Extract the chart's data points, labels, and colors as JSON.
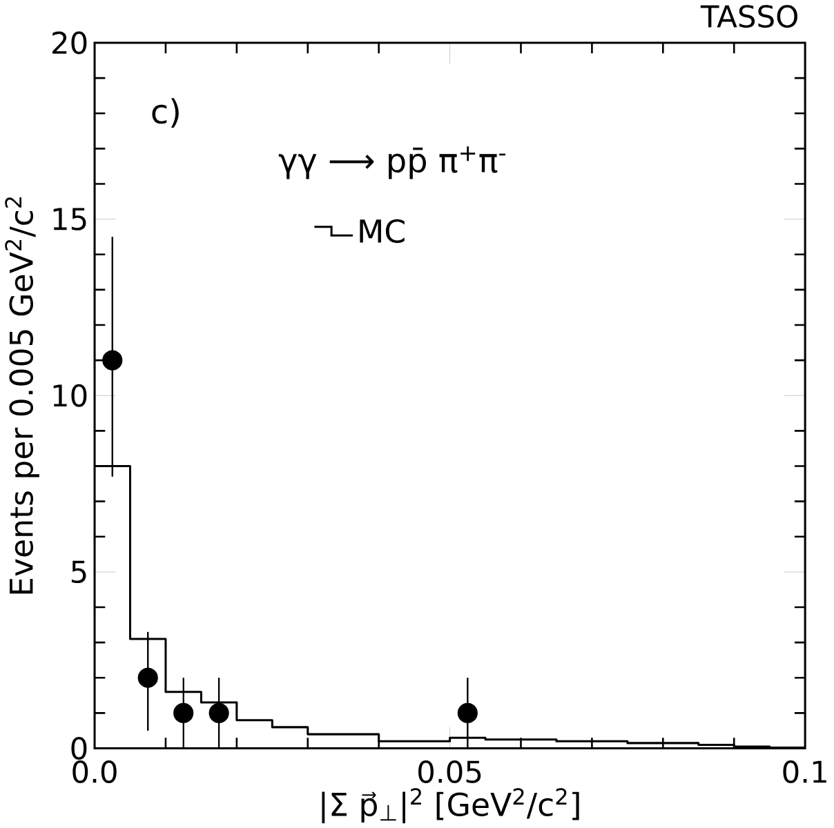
{
  "chart_data": {
    "type": "histogram",
    "title": "TASSO",
    "xlabel": "|Σ p⃗$_{⊥}$|$^{2}$ [GeV$^{2}$/c$^{2}$]",
    "ylabel": "Events per 0.005 GeV$^{2}$/c$^{2}$",
    "annotations": [
      "c)",
      "γγ ⟶ pp̄ π$^{+}$π$^{-}$"
    ],
    "series": [
      {
        "name": "MC",
        "color": "#000000",
        "bins": [
          0,
          0.005,
          0.01,
          0.015,
          0.02,
          0.025,
          0.03,
          0.04,
          0.05,
          0.055,
          0.065,
          0.075,
          0.085,
          0.09,
          0.095,
          0.1
        ],
        "values": [
          8.0,
          3.1,
          1.6,
          1.3,
          0.8,
          0.6,
          0.4,
          0.2,
          0.3,
          0.25,
          0.2,
          0.15,
          0.1,
          0.05,
          0.02
        ]
      },
      {
        "type": "scatter",
        "color": "#000000",
        "x": [
          0.0025,
          0.0075,
          0.0125,
          0.0175,
          0.0525
        ],
        "values": [
          11,
          2,
          1,
          1,
          1
        ],
        "errors": [
          [
            7.7,
            14.5
          ],
          [
            0.5,
            3.3
          ],
          [
            0,
            2
          ],
          [
            0,
            2
          ],
          [
            0,
            2
          ]
        ]
      }
    ],
    "xlim": [
      0,
      0.1
    ],
    "ylim": [
      0,
      20
    ],
    "xticks": [
      {
        "value": 0,
        "label": "0.0"
      },
      0.05,
      0.1
    ],
    "yticks": [
      0,
      5,
      10,
      15,
      20
    ],
    "legend": "top"
  }
}
